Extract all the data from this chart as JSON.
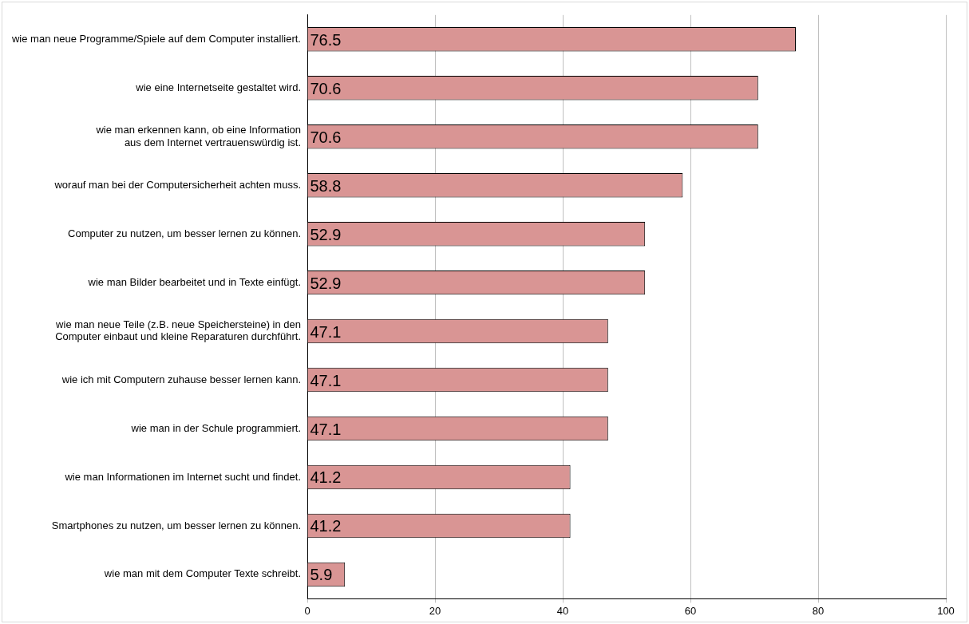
{
  "chart_data": {
    "type": "bar",
    "orientation": "horizontal",
    "categories": [
      "wie man neue Programme/Spiele auf dem Computer installiert.",
      "wie eine Internetseite gestaltet wird.",
      "wie man erkennen kann, ob eine Information\naus dem Internet vertrauenswürdig ist.",
      "worauf man bei der Computersicherheit achten muss.",
      "Computer zu nutzen, um besser lernen zu können.",
      "wie man Bilder bearbeitet und in Texte einfügt.",
      "wie man neue Teile (z.B. neue Speichersteine) in den\nComputer einbaut und kleine Reparaturen durchführt.",
      "wie ich mit Computern zuhause besser lernen kann.",
      "wie man in der Schule programmiert.",
      "wie man Informationen im Internet sucht und findet.",
      "Smartphones zu nutzen, um besser lernen zu können.",
      "wie man mit dem Computer Texte schreibt."
    ],
    "values": [
      76.5,
      70.6,
      70.6,
      58.8,
      52.9,
      52.9,
      47.1,
      47.1,
      47.1,
      41.2,
      41.2,
      5.9
    ],
    "color": "#d99594",
    "xlim": [
      0,
      100
    ],
    "xticks": [
      0,
      20,
      40,
      60,
      80,
      100
    ],
    "grid": "x",
    "data_labels": true
  }
}
